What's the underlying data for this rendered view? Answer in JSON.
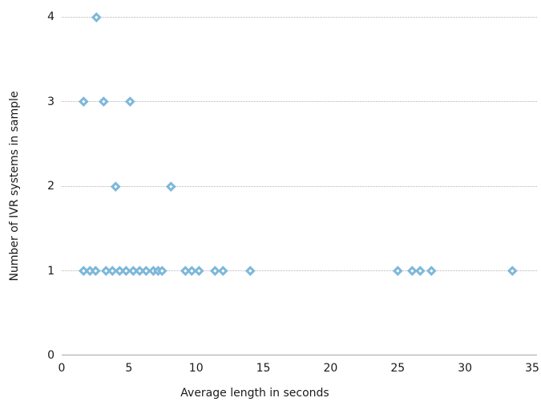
{
  "chart_data": {
    "type": "scatter",
    "title": "",
    "xlabel": "Average length in seconds",
    "ylabel": "Number of IVR systems in sample",
    "xlim": [
      0,
      35
    ],
    "ylim": [
      0,
      4
    ],
    "x_ticks": [
      0,
      5,
      10,
      15,
      20,
      25,
      30,
      35
    ],
    "y_ticks": [
      0,
      1,
      2,
      3,
      4
    ],
    "grid": "horizontal dotted lines at y=1..4, solid axis line at y=0, no vertical gridlines, no legend",
    "marker": {
      "shape": "diamond",
      "fill": "#7db8d9",
      "center_dot": "#ffffff"
    },
    "series": [
      {
        "name": "IVR systems",
        "points_by_y": [
          {
            "y": 4,
            "x_values": [
              2.6
            ]
          },
          {
            "y": 3,
            "x_values": [
              1.6,
              3.1,
              5.1
            ]
          },
          {
            "y": 2,
            "x_values": [
              4.0,
              8.1
            ]
          },
          {
            "y": 1,
            "x_values": [
              1.6,
              2.1,
              2.5,
              3.3,
              3.8,
              4.3,
              4.8,
              5.3,
              5.8,
              6.3,
              6.8,
              7.2,
              7.5,
              9.2,
              9.7,
              10.2,
              11.4,
              12.0,
              14.0,
              25.0,
              26.1,
              26.7,
              27.5,
              33.5
            ]
          }
        ]
      }
    ]
  },
  "colors": {
    "marker_fill": "#7db8d9",
    "marker_center": "#ffffff",
    "gridline": "#b3b3b3",
    "axis_line": "#a6a6a6",
    "text": "#1a1a1a",
    "background": "#ffffff"
  }
}
